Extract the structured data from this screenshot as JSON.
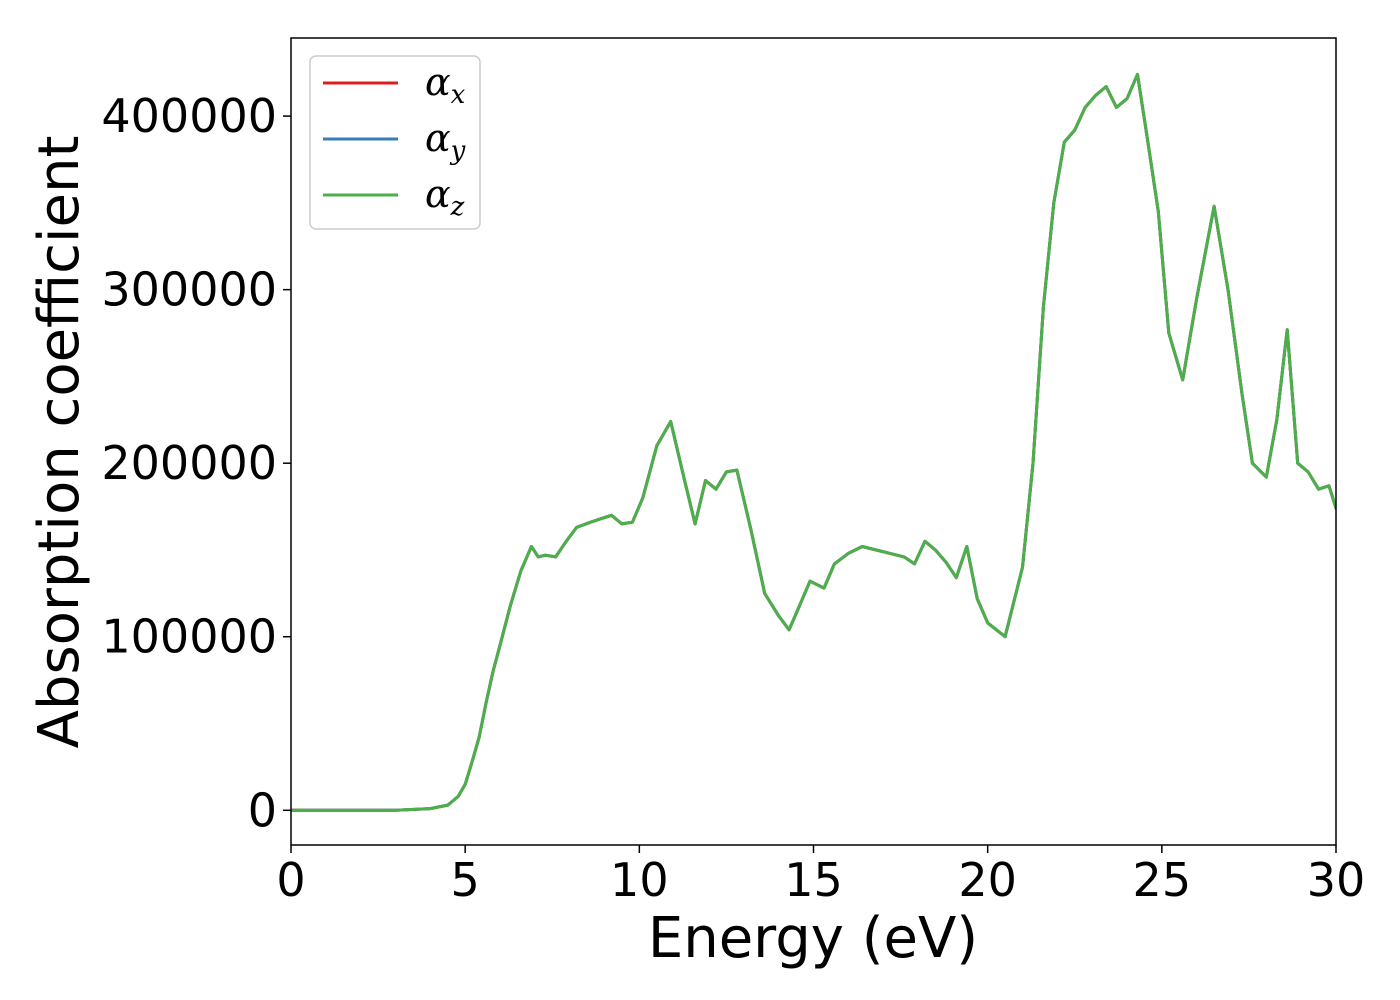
{
  "chart_data": {
    "type": "line",
    "title": "",
    "xlabel": "Energy (eV)",
    "ylabel": "Absorption coefficient",
    "xlim": [
      0,
      30
    ],
    "ylim": [
      -20000,
      445000
    ],
    "xticks": [
      0,
      5,
      10,
      15,
      20,
      25,
      30
    ],
    "yticks": [
      0,
      100000,
      200000,
      300000,
      400000
    ],
    "grid": false,
    "legend_position": "top-left",
    "x": [
      0,
      2,
      3,
      4,
      4.5,
      4.8,
      5.0,
      5.2,
      5.4,
      5.6,
      5.8,
      6.0,
      6.3,
      6.6,
      6.9,
      7.1,
      7.3,
      7.6,
      7.9,
      8.2,
      8.6,
      8.9,
      9.2,
      9.5,
      9.8,
      10.1,
      10.5,
      10.9,
      11.3,
      11.6,
      11.9,
      12.2,
      12.5,
      12.8,
      13.2,
      13.6,
      14.0,
      14.3,
      14.6,
      14.9,
      15.3,
      15.6,
      16.0,
      16.4,
      16.8,
      17.2,
      17.6,
      17.9,
      18.2,
      18.5,
      18.8,
      19.1,
      19.4,
      19.7,
      20.0,
      20.5,
      21.0,
      21.3,
      21.6,
      21.9,
      22.2,
      22.5,
      22.8,
      23.1,
      23.4,
      23.7,
      24.0,
      24.3,
      24.6,
      24.9,
      25.2,
      25.6,
      26.0,
      26.5,
      26.9,
      27.3,
      27.6,
      28.0,
      28.3,
      28.6,
      28.9,
      29.2,
      29.5,
      29.8,
      30.0
    ],
    "series": [
      {
        "name": "α_x",
        "name_main": "α",
        "name_sub": "x",
        "color": "#e41a1c",
        "values": [
          0,
          0,
          0,
          1000,
          3000,
          8000,
          15000,
          28000,
          42000,
          62000,
          80000,
          95000,
          118000,
          138000,
          152000,
          146000,
          147000,
          146000,
          155000,
          163000,
          166000,
          168000,
          170000,
          165000,
          166000,
          180000,
          210000,
          224000,
          190000,
          165000,
          190000,
          185000,
          195000,
          196000,
          162000,
          125000,
          112000,
          104000,
          118000,
          132000,
          128000,
          142000,
          148000,
          152000,
          150000,
          148000,
          146000,
          142000,
          155000,
          150000,
          143000,
          134000,
          152000,
          122000,
          108000,
          100000,
          140000,
          200000,
          290000,
          350000,
          385000,
          392000,
          405000,
          412000,
          417000,
          405000,
          410000,
          424000,
          385000,
          345000,
          275000,
          248000,
          295000,
          348000,
          300000,
          240000,
          200000,
          192000,
          225000,
          277000,
          200000,
          195000,
          185000,
          187000,
          174000
        ]
      },
      {
        "name": "α_y",
        "name_main": "α",
        "name_sub": "y",
        "color": "#377eb8",
        "values": [
          0,
          0,
          0,
          1000,
          3000,
          8000,
          15000,
          28000,
          42000,
          62000,
          80000,
          95000,
          118000,
          138000,
          152000,
          146000,
          147000,
          146000,
          155000,
          163000,
          166000,
          168000,
          170000,
          165000,
          166000,
          180000,
          210000,
          224000,
          190000,
          165000,
          190000,
          185000,
          195000,
          196000,
          162000,
          125000,
          112000,
          104000,
          118000,
          132000,
          128000,
          142000,
          148000,
          152000,
          150000,
          148000,
          146000,
          142000,
          155000,
          150000,
          143000,
          134000,
          152000,
          122000,
          108000,
          100000,
          140000,
          200000,
          290000,
          350000,
          385000,
          392000,
          405000,
          412000,
          417000,
          405000,
          410000,
          424000,
          385000,
          345000,
          275000,
          248000,
          295000,
          348000,
          300000,
          240000,
          200000,
          192000,
          225000,
          277000,
          200000,
          195000,
          185000,
          187000,
          174000
        ]
      },
      {
        "name": "α_z",
        "name_main": "α",
        "name_sub": "z",
        "color": "#4daf4a",
        "values": [
          0,
          0,
          0,
          1000,
          3000,
          8000,
          15000,
          28000,
          42000,
          62000,
          80000,
          95000,
          118000,
          138000,
          152000,
          146000,
          147000,
          146000,
          155000,
          163000,
          166000,
          168000,
          170000,
          165000,
          166000,
          180000,
          210000,
          224000,
          190000,
          165000,
          190000,
          185000,
          195000,
          196000,
          162000,
          125000,
          112000,
          104000,
          118000,
          132000,
          128000,
          142000,
          148000,
          152000,
          150000,
          148000,
          146000,
          142000,
          155000,
          150000,
          143000,
          134000,
          152000,
          122000,
          108000,
          100000,
          140000,
          200000,
          290000,
          350000,
          385000,
          392000,
          405000,
          412000,
          417000,
          405000,
          410000,
          424000,
          385000,
          345000,
          275000,
          248000,
          295000,
          348000,
          300000,
          240000,
          200000,
          192000,
          225000,
          277000,
          200000,
          195000,
          185000,
          187000,
          174000
        ]
      }
    ]
  }
}
